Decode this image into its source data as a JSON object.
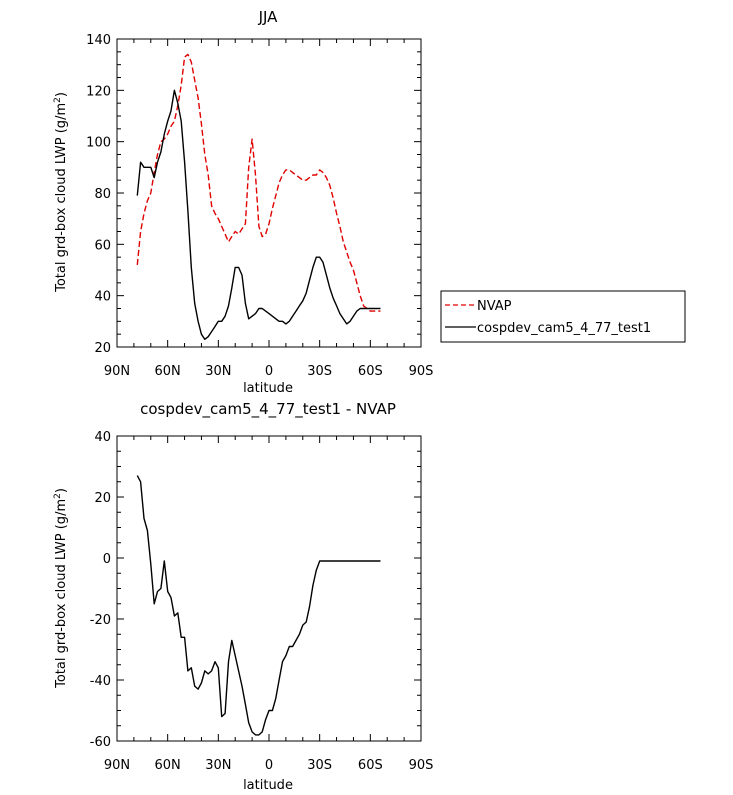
{
  "chart_data": [
    {
      "type": "line",
      "title": "JJA",
      "xlabel": "latitude",
      "ylabel": "Total grd-box cloud LWP (g/m",
      "ylabel_sup": "2",
      "ylabel_end": ")",
      "xlim": [
        90,
        -90
      ],
      "ylim": [
        20,
        140
      ],
      "xticks": [
        {
          "v": 90,
          "label": "90N"
        },
        {
          "v": 60,
          "label": "60N"
        },
        {
          "v": 30,
          "label": "30N"
        },
        {
          "v": 0,
          "label": "0"
        },
        {
          "v": -30,
          "label": "30S"
        },
        {
          "v": -60,
          "label": "60S"
        },
        {
          "v": -90,
          "label": "90S"
        }
      ],
      "yticks": [
        20,
        40,
        60,
        80,
        100,
        120,
        140
      ],
      "legend": {
        "placement": "right"
      },
      "series": [
        {
          "name": "NVAP",
          "color": "#e00000",
          "dash": true,
          "x": [
            78,
            76,
            74,
            72,
            70,
            68,
            66,
            64,
            62,
            60,
            58,
            56,
            54,
            52,
            50,
            48,
            46,
            44,
            42,
            40,
            38,
            36,
            34,
            32,
            30,
            28,
            26,
            24,
            22,
            20,
            18,
            16,
            14,
            12,
            10,
            8,
            6,
            4,
            2,
            0,
            -2,
            -4,
            -6,
            -8,
            -10,
            -12,
            -14,
            -16,
            -18,
            -20,
            -22,
            -24,
            -26,
            -28,
            -30,
            -32,
            -34,
            -36,
            -38,
            -40,
            -42,
            -44,
            -46,
            -48,
            -50,
            -52,
            -54,
            -56,
            -58,
            -60,
            -62,
            -64,
            -66
          ],
          "y": [
            52,
            65,
            72,
            77,
            80,
            88,
            95,
            100,
            101,
            103,
            106,
            108,
            114,
            122,
            133,
            134,
            131,
            124,
            117,
            107,
            95,
            87,
            75,
            72,
            70,
            67,
            64,
            61,
            63,
            65,
            64,
            66,
            68,
            90,
            101,
            87,
            67,
            63,
            64,
            68,
            74,
            79,
            84,
            87,
            89,
            89,
            88,
            87,
            86,
            85,
            85,
            86,
            87,
            87,
            89,
            88,
            86,
            83,
            78,
            72,
            67,
            61,
            57,
            53,
            50,
            45,
            40,
            36,
            35,
            34,
            34,
            34,
            34
          ]
        },
        {
          "name": "cospdev_cam5_4_77_test1",
          "color": "#000000",
          "dash": false,
          "x": [
            78,
            76,
            74,
            72,
            70,
            68,
            66,
            64,
            62,
            60,
            58,
            56,
            54,
            52,
            50,
            48,
            46,
            44,
            42,
            40,
            38,
            36,
            34,
            32,
            30,
            28,
            26,
            24,
            22,
            20,
            18,
            16,
            14,
            12,
            10,
            8,
            6,
            4,
            2,
            0,
            -2,
            -4,
            -6,
            -8,
            -10,
            -12,
            -14,
            -16,
            -18,
            -20,
            -22,
            -24,
            -26,
            -28,
            -30,
            -32,
            -34,
            -36,
            -38,
            -40,
            -42,
            -44,
            -46,
            -48,
            -50,
            -52,
            -54,
            -56,
            -58,
            -60,
            -62,
            -64,
            -66
          ],
          "y": [
            79,
            92,
            90,
            90,
            90,
            86,
            92,
            96,
            103,
            108,
            112,
            120,
            115,
            108,
            92,
            73,
            51,
            37,
            30,
            25,
            23,
            24,
            26,
            28,
            30,
            30,
            32,
            36,
            43,
            51,
            51,
            48,
            37,
            31,
            32,
            33,
            35,
            35,
            34,
            33,
            32,
            31,
            30,
            30,
            29,
            30,
            32,
            34,
            36,
            38,
            41,
            46,
            51,
            55,
            55,
            53,
            48,
            43,
            39,
            36,
            33,
            31,
            29,
            30,
            32,
            34,
            35,
            35,
            35,
            35,
            35,
            35,
            35
          ]
        }
      ]
    },
    {
      "type": "line",
      "title": "cospdev_cam5_4_77_test1 - NVAP",
      "xlabel": "latitude",
      "ylabel": "Total grd-box cloud LWP (g/m",
      "ylabel_sup": "2",
      "ylabel_end": ")",
      "xlim": [
        90,
        -90
      ],
      "ylim": [
        -60,
        40
      ],
      "xticks": [
        {
          "v": 90,
          "label": "90N"
        },
        {
          "v": 60,
          "label": "60N"
        },
        {
          "v": 30,
          "label": "30N"
        },
        {
          "v": 0,
          "label": "0"
        },
        {
          "v": -30,
          "label": "30S"
        },
        {
          "v": -60,
          "label": "60S"
        },
        {
          "v": -90,
          "label": "90S"
        }
      ],
      "yticks": [
        -60,
        -40,
        -20,
        0,
        20,
        40
      ],
      "series": [
        {
          "color": "#000000",
          "dash": false,
          "x": [
            78,
            76,
            74,
            72,
            70,
            68,
            66,
            64,
            62,
            60,
            58,
            56,
            54,
            52,
            50,
            48,
            46,
            44,
            42,
            40,
            38,
            36,
            34,
            32,
            30,
            28,
            26,
            24,
            22,
            20,
            18,
            16,
            14,
            12,
            10,
            8,
            6,
            4,
            2,
            0,
            -2,
            -4,
            -6,
            -8,
            -10,
            -12,
            -14,
            -16,
            -18,
            -20,
            -22,
            -24,
            -26,
            -28,
            -30,
            -32,
            -34,
            -36,
            -38,
            -40,
            -42,
            -44,
            -46,
            -48,
            -50,
            -52,
            -54,
            -56,
            -58,
            -60,
            -62,
            -64,
            -66
          ],
          "y": [
            27,
            25,
            13,
            9,
            -2,
            -15,
            -11,
            -10,
            -1,
            -11,
            -13,
            -19,
            -18,
            -26,
            -26,
            -37,
            -36,
            -42,
            -43,
            -41,
            -37,
            -38,
            -37,
            -34,
            -36,
            -52,
            -51,
            -34,
            -27,
            -32,
            -37,
            -42,
            -48,
            -54,
            -57,
            -58,
            -58,
            -57,
            -53,
            -50,
            -50,
            -46,
            -40,
            -34,
            -32,
            -29,
            -29,
            -27,
            -25,
            -22,
            -21,
            -16,
            -9,
            -4,
            -1,
            -1,
            -1,
            -1,
            -1,
            -1,
            -1,
            -1,
            -1,
            -1,
            -1,
            -1,
            -1,
            -1,
            -1,
            -1,
            -1,
            -1,
            -1
          ]
        }
      ]
    }
  ]
}
